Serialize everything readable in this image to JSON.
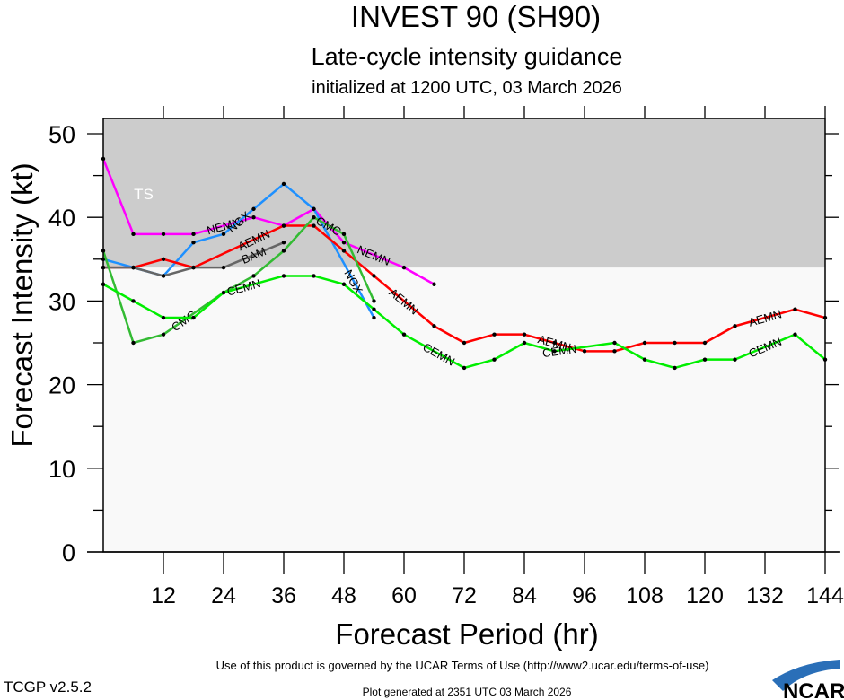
{
  "chart_data": {
    "type": "line",
    "title": "INVEST 90 (SH90)",
    "subtitle": "Late-cycle intensity guidance",
    "subtitle2": "initialized at 1200 UTC, 03 March 2026",
    "xlabel": "Forecast Period (hr)",
    "ylabel": "Forecast Intensity (kt)",
    "xlim": [
      0,
      144
    ],
    "ylim": [
      0,
      50
    ],
    "xticks": [
      12,
      24,
      36,
      48,
      60,
      72,
      84,
      96,
      108,
      120,
      132,
      144
    ],
    "yticks": [
      0,
      10,
      20,
      30,
      40,
      50
    ],
    "band": {
      "label": "TS",
      "from": 34,
      "to": 52,
      "color": "#cccccc"
    },
    "series": [
      {
        "name": "NEMN",
        "color": "#ff00ff",
        "label_at": [
          24,
          54
        ],
        "x": [
          0,
          6,
          12,
          18,
          30,
          36,
          42,
          48,
          60,
          66
        ],
        "values": [
          47,
          38,
          38,
          38,
          40,
          39,
          41,
          37,
          34,
          32
        ]
      },
      {
        "name": "NGX",
        "color": "#1e90ff",
        "label_at": [
          27,
          50
        ],
        "x": [
          0,
          6,
          12,
          18,
          24,
          30,
          36,
          42,
          54
        ],
        "values": [
          35,
          34,
          33,
          37,
          38,
          41,
          44,
          41,
          28
        ]
      },
      {
        "name": "AEMN",
        "color": "#ff0000",
        "label_at": [
          30,
          60,
          90,
          132
        ],
        "x": [
          0,
          6,
          12,
          18,
          36,
          42,
          48,
          54,
          66,
          72,
          78,
          84,
          90,
          96,
          102,
          108,
          114,
          120,
          126,
          138,
          144
        ],
        "values": [
          34,
          34,
          35,
          34,
          39,
          39,
          36,
          33,
          27,
          25,
          26,
          26,
          25,
          24,
          24,
          25,
          25,
          25,
          27,
          29,
          28
        ]
      },
      {
        "name": "BAM",
        "color": "#666666",
        "label_at": [
          30
        ],
        "x": [
          0,
          6,
          12,
          18,
          24,
          36
        ],
        "values": [
          34,
          34,
          33,
          34,
          34,
          37
        ]
      },
      {
        "name": "CMC",
        "color": "#33bb33",
        "label_at": [
          16,
          45
        ],
        "x": [
          0,
          6,
          12,
          24,
          30,
          36,
          42,
          48,
          54
        ],
        "values": [
          36,
          25,
          26,
          31,
          33,
          36,
          40,
          38,
          30
        ]
      },
      {
        "name": "CEMN",
        "color": "#00ee00",
        "label_at": [
          28,
          67,
          91,
          132
        ],
        "x": [
          0,
          6,
          12,
          18,
          24,
          36,
          42,
          48,
          54,
          60,
          72,
          78,
          84,
          90,
          102,
          108,
          114,
          120,
          126,
          138,
          144
        ],
        "values": [
          32,
          30,
          28,
          28,
          31,
          33,
          33,
          32,
          29,
          26,
          22,
          23,
          25,
          24,
          25,
          23,
          22,
          23,
          23,
          26,
          23
        ]
      }
    ]
  },
  "footer": {
    "version": "TCGP v2.5.2",
    "terms": "Use of this product is governed by the UCAR Terms of Use (http://www2.ucar.edu/terms-of-use)",
    "generated": "Plot generated at 2351 UTC   03 March 2026",
    "logo": "NCAR"
  }
}
